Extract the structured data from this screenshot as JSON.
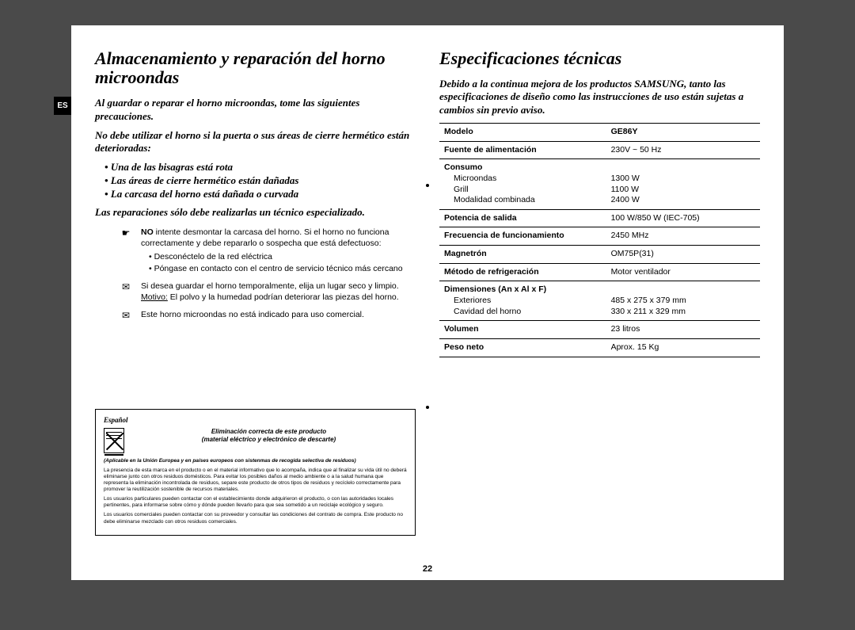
{
  "lang_tab": "ES",
  "page_number": "22",
  "left": {
    "title": "Almacenamiento y reparación del horno microondas",
    "p1": "Al guardar o reparar el horno microondas, tome las siguientes precauciones.",
    "p2": "No debe utilizar el horno si la puerta o sus áreas de cierre hermético están deterioradas:",
    "bullets": [
      "Una de las bisagras está rota",
      "Las áreas de cierre hermético están dañadas",
      "La carcasa del horno está dañada o curvada"
    ],
    "p3": "Las reparaciones sólo debe realizarlas un técnico especializado.",
    "notes": [
      {
        "sym": "☛",
        "lead_bold": "NO",
        "lead_rest": " intente desmontar la carcasa del horno. Si el horno no funciona correctamente y debe repararlo o sospecha que está defectuoso:",
        "items": [
          "Desconéctelo de la red eléctrica",
          "Póngase en contacto con el centro de servicio técnico más cercano"
        ]
      },
      {
        "sym": "✉",
        "text_pre": "Si desea guardar el horno temporalmente, elija un lugar seco y limpio.",
        "motivo_label": "Motivo:",
        "motivo_text": "  El polvo y la humedad podrían deteriorar las piezas del horno."
      },
      {
        "sym": "✉",
        "text": "Este horno microondas no está indicado para uso comercial."
      }
    ],
    "weee": {
      "lang": "Español",
      "title1": "Eliminación correcta de este producto",
      "title2": "(material eléctrico y electrónico de descarte)",
      "sub": "(Aplicable en la Unión Europea y en países europeos con sistenmas de recogida selectiva de residuos)",
      "p1": "La presencia de esta marca en el producto o en el material informativo que lo acompaña, indica que al finalizar su vida útil no deberá eliminarse junto con otros residuos domésticos. Para evitar los posibles daños al medio ambiente o a la salud humana que representa la eliminación incontrolada de residuos, separe este producto de otros tipos de residuos y recíclelo correctamente para promover la reutilización sostenible de recursos materiales.",
      "p2": "Los usuarios particulares pueden contactar con el establecimiento donde adquirieron el producto, o con las autoridades locales pertinentes, para informarse sobre cómo y dónde pueden llevarlo para que sea sometido a un reciclaje ecológico y seguro.",
      "p3": "Los usuarios comerciales pueden contactar con su proveedor y consultar las condiciones del contrato de compra. Este producto no debe eliminarse mezclado con otros residuos comerciales."
    }
  },
  "right": {
    "title": "Especificaciones técnicas",
    "intro": "Debido a la continua mejora de los productos SAMSUNG, tanto las especificaciones de diseño como las instrucciones de uso están sujetas a cambios sin previo aviso.",
    "rows": {
      "modelo_l": "Modelo",
      "modelo_v": "GE86Y",
      "fuente_l": "Fuente de alimentación",
      "fuente_v": "230V ~ 50 Hz",
      "consumo_l": "Consumo",
      "consumo_s1": "Microondas",
      "consumo_v1": "1300 W",
      "consumo_s2": "Grill",
      "consumo_v2": "1100 W",
      "consumo_s3": "Modalidad combinada",
      "consumo_v3": "2400 W",
      "potencia_l": "Potencia de salida",
      "potencia_v": "100 W/850 W (IEC-705)",
      "freq_l": "Frecuencia de funcionamiento",
      "freq_v": "2450 MHz",
      "magnetron_l": "Magnetrón",
      "magnetron_v": "OM75P(31)",
      "refrig_l": "Método de refrigeración",
      "refrig_v": "Motor ventilador",
      "dim_l": "Dimensiones (An x Al x F)",
      "dim_s1": "Exteriores",
      "dim_v1": "485 x 275 x 379 mm",
      "dim_s2": "Cavidad del horno",
      "dim_v2": "330 x 211 x 329 mm",
      "vol_l": "Volumen",
      "vol_v": "23 litros",
      "peso_l": "Peso neto",
      "peso_v": "Aprox. 15 Kg"
    }
  }
}
